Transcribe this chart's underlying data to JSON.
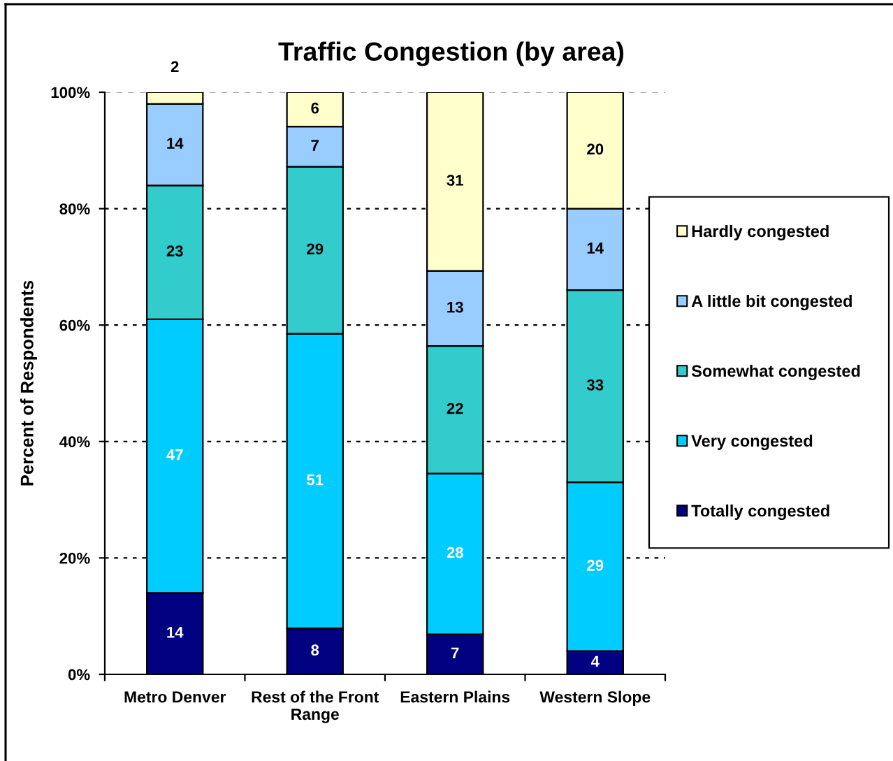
{
  "chart_data": {
    "type": "bar",
    "title": "Traffic Congestion (by area)",
    "ylabel": "Percent of Respondents",
    "categories": [
      "Metro Denver",
      "Rest of the Front Range",
      "Eastern Plains",
      "Western Slope"
    ],
    "stacked": true,
    "series": [
      {
        "name": "Totally congested",
        "color": "#000080",
        "values": [
          14,
          7.9,
          6.9,
          4
        ],
        "value_labels": [
          "14",
          "8",
          "7",
          "4"
        ]
      },
      {
        "name": "Very congested",
        "color": "#00ccff",
        "values": [
          47,
          50.6,
          27.6,
          29
        ],
        "value_labels": [
          "47",
          "51",
          "28",
          "29"
        ]
      },
      {
        "name": "Somewhat congested",
        "color": "#33cccc",
        "values": [
          23,
          28.7,
          21.9,
          33
        ],
        "value_labels": [
          "23",
          "29",
          "22",
          "33"
        ]
      },
      {
        "name": "A little bit congested",
        "color": "#99ccff",
        "values": [
          14,
          6.9,
          12.9,
          14
        ],
        "value_labels": [
          "14",
          "7",
          "13",
          "14"
        ]
      },
      {
        "name": "Hardly congested",
        "color": "#ffffcc",
        "values": [
          2,
          5.9,
          30.7,
          20
        ],
        "value_labels": [
          "2",
          "6",
          "31",
          "20"
        ]
      }
    ],
    "ylim": [
      0,
      100
    ],
    "yticks": [
      {
        "value": 0,
        "label": "0%"
      },
      {
        "value": 20,
        "label": "20%"
      },
      {
        "value": 40,
        "label": "40%"
      },
      {
        "value": 60,
        "label": "60%"
      },
      {
        "value": 80,
        "label": "80%"
      },
      {
        "value": 100,
        "label": "100%"
      }
    ],
    "grid": "y",
    "legend": "right"
  }
}
